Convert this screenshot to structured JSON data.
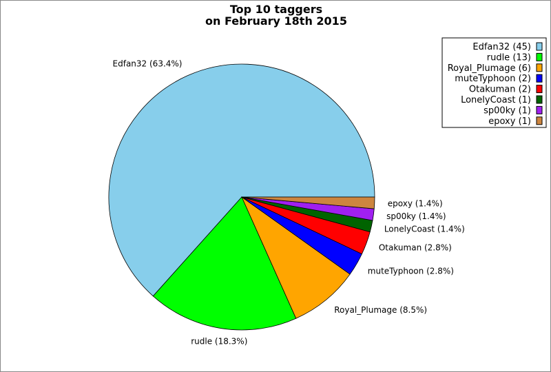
{
  "chart_data": {
    "type": "pie",
    "title": [
      "Top 10 taggers",
      "on February 18th 2015"
    ],
    "start_angle_deg": 0,
    "direction": "counterclockwise",
    "legend_placement": "top-right",
    "slices": [
      {
        "name": "Edfan32",
        "value": 45,
        "percent_label": "Edfan32 (63.4%)",
        "legend_label": "Edfan32 (45)",
        "color": "#87CEEB"
      },
      {
        "name": "rudle",
        "value": 13,
        "percent_label": "rudle (18.3%)",
        "legend_label": "rudle (13)",
        "color": "#00FF00"
      },
      {
        "name": "Royal_Plumage",
        "value": 6,
        "percent_label": "Royal_Plumage (8.5%)",
        "legend_label": "Royal_Plumage (6)",
        "color": "#FFA500"
      },
      {
        "name": "muteTyphoon",
        "value": 2,
        "percent_label": "muteTyphoon (2.8%)",
        "legend_label": "muteTyphoon (2)",
        "color": "#0000FF"
      },
      {
        "name": "Otakuman",
        "value": 2,
        "percent_label": "Otakuman (2.8%)",
        "legend_label": "Otakuman (2)",
        "color": "#FF0000"
      },
      {
        "name": "LonelyCoast",
        "value": 1,
        "percent_label": "LonelyCoast (1.4%)",
        "legend_label": "LonelyCoast (1)",
        "color": "#006400"
      },
      {
        "name": "sp00ky",
        "value": 1,
        "percent_label": "sp00ky (1.4%)",
        "legend_label": "sp00ky (1)",
        "color": "#A020F0"
      },
      {
        "name": "epoxy",
        "value": 1,
        "percent_label": "epoxy (1.4%)",
        "legend_label": "epoxy (1)",
        "color": "#CD853F"
      }
    ]
  }
}
